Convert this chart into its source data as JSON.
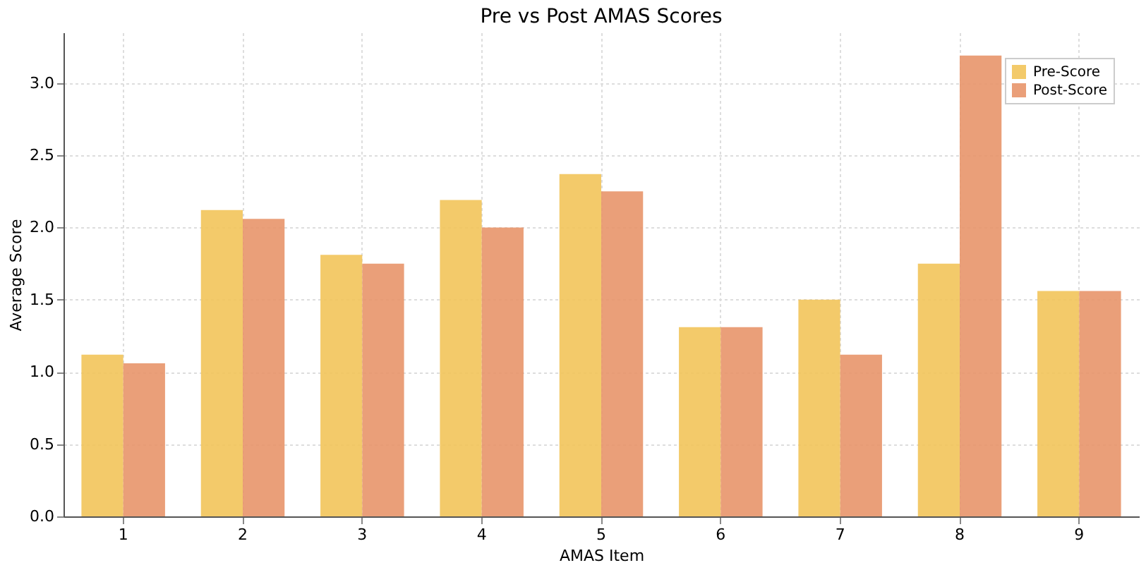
{
  "chart_data": {
    "type": "bar",
    "title": "Pre vs Post AMAS Scores",
    "xlabel": "AMAS Item",
    "ylabel": "Average Score",
    "categories": [
      "1",
      "2",
      "3",
      "4",
      "5",
      "6",
      "7",
      "8",
      "9"
    ],
    "series": [
      {
        "name": "Pre-Score",
        "color": "#f2c45a",
        "values": [
          1.12,
          2.12,
          1.81,
          2.19,
          2.37,
          1.31,
          1.5,
          1.75,
          1.56
        ]
      },
      {
        "name": "Post-Score",
        "color": "#e8956a",
        "values": [
          1.06,
          2.06,
          1.75,
          2.0,
          2.25,
          1.31,
          1.12,
          3.19,
          1.56
        ]
      }
    ],
    "ylim": [
      0,
      3.35
    ],
    "yticks": [
      {
        "value": 0,
        "label": "0.0"
      },
      0.5,
      {
        "value": 1,
        "label": "1.0"
      },
      1.5,
      {
        "value": 2,
        "label": "2.0"
      },
      2.5,
      {
        "value": 3,
        "label": "3.0"
      }
    ],
    "grid": true,
    "legend": "top right"
  }
}
